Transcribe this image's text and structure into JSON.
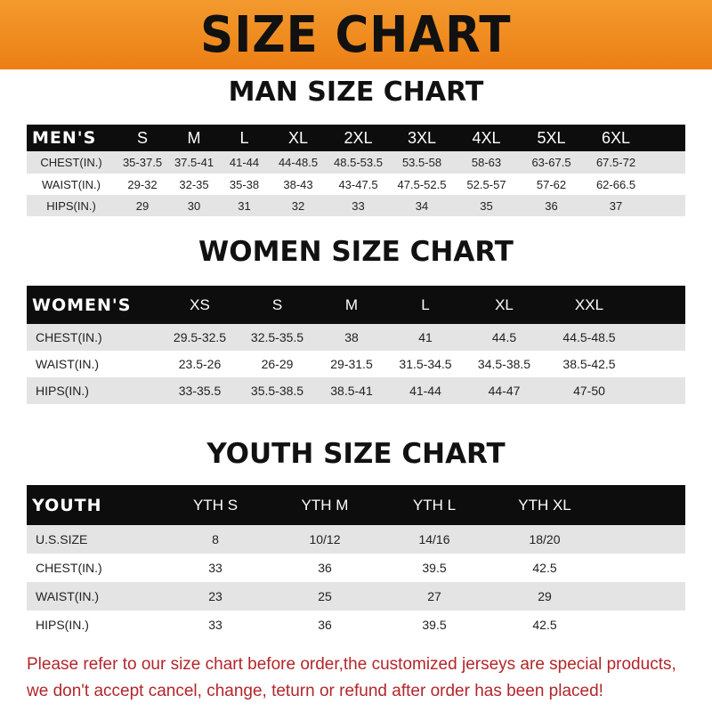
{
  "banner_title": "SIZE CHART",
  "men": {
    "title": "MAN SIZE CHART",
    "header": "MEN'S",
    "sizes": [
      "S",
      "M",
      "L",
      "XL",
      "2XL",
      "3XL",
      "4XL",
      "5XL",
      "6XL"
    ],
    "rows": [
      {
        "label": "CHEST(IN.)",
        "values": [
          "35-37.5",
          "37.5-41",
          "41-44",
          "44-48.5",
          "48.5-53.5",
          "53.5-58",
          "58-63",
          "63-67.5",
          "67.5-72"
        ]
      },
      {
        "label": "WAIST(IN.)",
        "values": [
          "29-32",
          "32-35",
          "35-38",
          "38-43",
          "43-47.5",
          "47.5-52.5",
          "52.5-57",
          "57-62",
          "62-66.5"
        ]
      },
      {
        "label": "HIPS(IN.)",
        "values": [
          "29",
          "30",
          "31",
          "32",
          "33",
          "34",
          "35",
          "36",
          "37"
        ]
      }
    ]
  },
  "women": {
    "title": "WOMEN SIZE CHART",
    "header": "WOMEN'S",
    "sizes": [
      "XS",
      "S",
      "M",
      "L",
      "XL",
      "XXL"
    ],
    "rows": [
      {
        "label": "CHEST(IN.)",
        "values": [
          "29.5-32.5",
          "32.5-35.5",
          "38",
          "41",
          "44.5",
          "44.5-48.5"
        ]
      },
      {
        "label": "WAIST(IN.)",
        "values": [
          "23.5-26",
          "26-29",
          "29-31.5",
          "31.5-34.5",
          "34.5-38.5",
          "38.5-42.5"
        ]
      },
      {
        "label": "HIPS(IN.)",
        "values": [
          "33-35.5",
          "35.5-38.5",
          "38.5-41",
          "41-44",
          "44-47",
          "47-50"
        ]
      }
    ]
  },
  "youth": {
    "title": "YOUTH SIZE CHART",
    "header": "YOUTH",
    "sizes": [
      "YTH S",
      "YTH M",
      "YTH L",
      "YTH XL"
    ],
    "rows": [
      {
        "label": "U.S.SIZE",
        "values": [
          "8",
          "10/12",
          "14/16",
          "18/20"
        ]
      },
      {
        "label": "CHEST(IN.)",
        "values": [
          "33",
          "36",
          "39.5",
          "42.5"
        ]
      },
      {
        "label": "WAIST(IN.)",
        "values": [
          "23",
          "25",
          "27",
          "29"
        ]
      },
      {
        "label": "HIPS(IN.)",
        "values": [
          "33",
          "36",
          "39.5",
          "42.5"
        ]
      }
    ]
  },
  "note": {
    "line1": "Please refer to our size chart before order,the customized jerseys are special products,",
    "line2": "we don't accept cancel, change, teturn or refund after order has been placed!"
  }
}
